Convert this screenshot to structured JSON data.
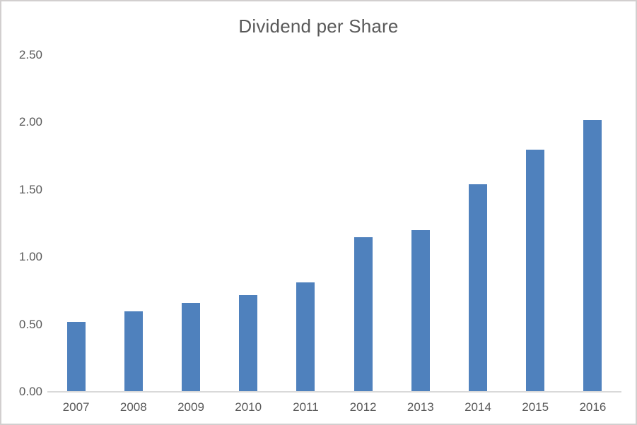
{
  "figure": {
    "background": "#ffffff",
    "border_color": "#d2cfcf"
  },
  "chart_data": {
    "type": "bar",
    "title": "Dividend per Share",
    "categories": [
      "2007",
      "2008",
      "2009",
      "2010",
      "2011",
      "2012",
      "2013",
      "2014",
      "2015",
      "2016"
    ],
    "values": [
      0.52,
      0.6,
      0.66,
      0.72,
      0.81,
      1.15,
      1.2,
      1.54,
      1.8,
      2.02
    ],
    "xlabel": "",
    "ylabel": "",
    "ylim": [
      0,
      2.5
    ],
    "ytick_interval": 0.5,
    "ytick_labels": [
      "0.00",
      "0.50",
      "1.00",
      "1.50",
      "2.00",
      "2.50"
    ],
    "grid": false,
    "legend": false,
    "bar_color": "#4f81bd",
    "axis_line_color": "#d9d9d9",
    "label_color": "#595959",
    "title_color": "#595959"
  }
}
